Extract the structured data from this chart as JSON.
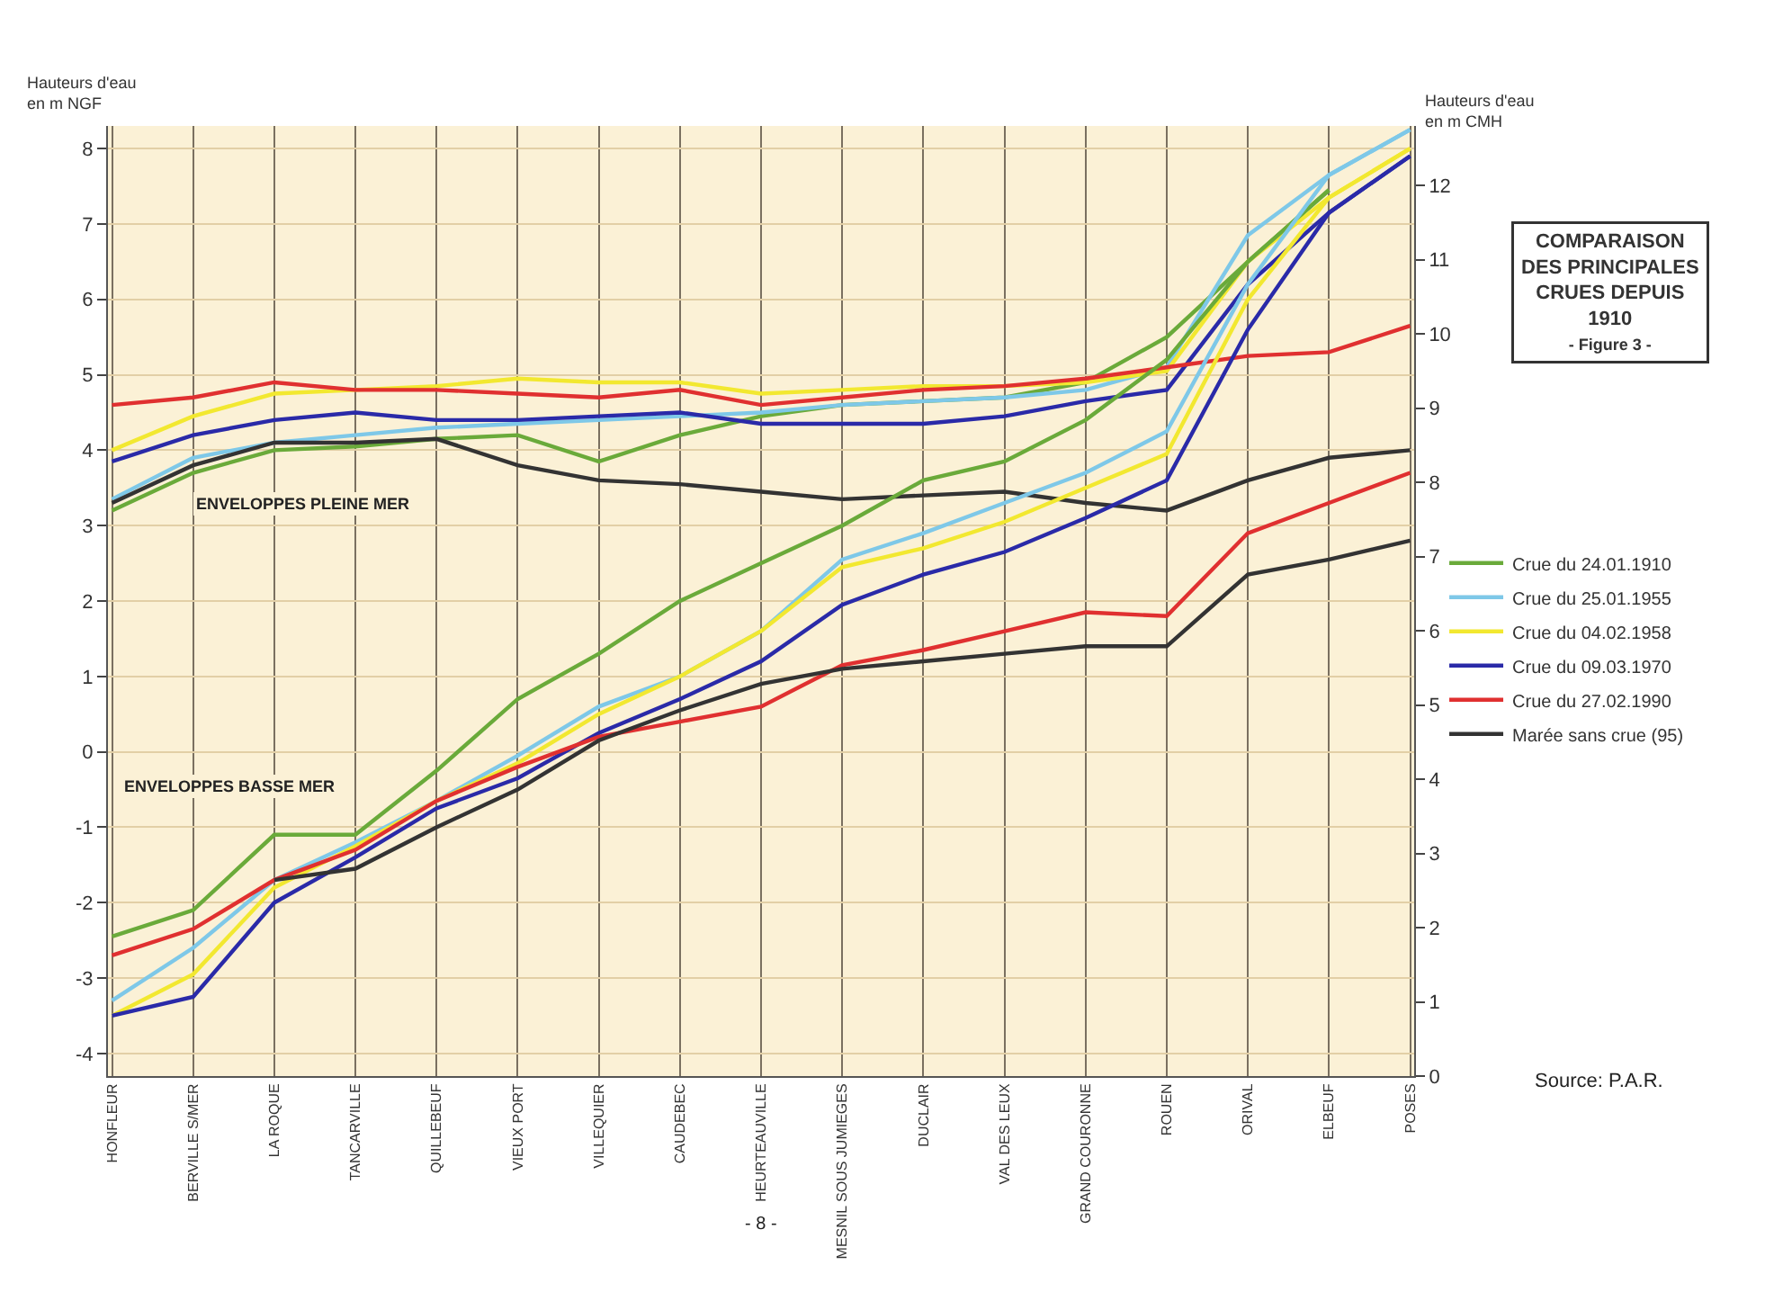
{
  "chart_data": {
    "type": "line",
    "title": "COMPARAISON\nDES PRINCIPALES\nCRUES DEPUIS\n1910",
    "subtitle": "- Figure 3 -",
    "ylabel": "Hauteurs d'eau\nen m NGF",
    "y2label": "Hauteurs d'eau\nen m CMH",
    "categories": [
      "HONFLEUR",
      "BERVILLE S/MER",
      "LA ROQUE",
      "TANCARVILLE",
      "QUILLEBEUF",
      "VIEUX PORT",
      "VILLEQUIER",
      "CAUDEBEC",
      "HEURTEAUVILLE",
      "MESNIL SOUS JUMIEGES",
      "DUCLAIR",
      "VAL DES LEUX",
      "GRAND COURONNE",
      "ROUEN",
      "ORIVAL",
      "ELBEUF",
      "POSES"
    ],
    "ylim": [
      -4.3,
      8.3
    ],
    "yticks": [
      -4,
      -3,
      -2,
      -1,
      0,
      1,
      2,
      3,
      4,
      5,
      6,
      7,
      8
    ],
    "y2lim": [
      0,
      12.8
    ],
    "y2ticks": [
      0,
      1,
      2,
      3,
      4,
      5,
      6,
      7,
      8,
      9,
      10,
      11,
      12
    ],
    "grid": true,
    "legend": "right",
    "marker": "none",
    "line_style": "solid",
    "series": [
      {
        "name": "Crue du 24.01.1910",
        "color": "#6aaa3a",
        "values": [
          3.2,
          3.7,
          4.0,
          4.05,
          4.15,
          4.2,
          3.85,
          4.2,
          4.45,
          4.6,
          4.65,
          4.7,
          4.9,
          5.5,
          6.5,
          7.45,
          null
        ]
      },
      {
        "name": "Crue du 25.01.1955",
        "color": "#7ec8e8",
        "values": [
          3.35,
          3.9,
          4.1,
          4.2,
          4.3,
          4.35,
          4.4,
          4.45,
          4.5,
          4.6,
          4.65,
          4.7,
          4.8,
          5.1,
          6.85,
          7.65,
          8.25
        ]
      },
      {
        "name": "Crue du 04.02.1958",
        "color": "#f2e830",
        "values": [
          4.0,
          4.45,
          4.75,
          4.8,
          4.85,
          4.95,
          4.9,
          4.9,
          4.75,
          4.8,
          4.85,
          4.85,
          4.9,
          5.05,
          6.5,
          7.35,
          8.0
        ]
      },
      {
        "name": "Crue du 09.03.1970",
        "color": "#2a2aa8",
        "values": [
          3.85,
          4.2,
          4.4,
          4.5,
          4.4,
          4.4,
          4.45,
          4.5,
          4.35,
          4.35,
          4.35,
          4.45,
          4.65,
          4.8,
          6.2,
          7.15,
          7.9
        ]
      },
      {
        "name": "Crue du 27.02.1990",
        "color": "#e03030",
        "values": [
          4.6,
          4.7,
          4.9,
          4.8,
          4.8,
          4.75,
          4.7,
          4.8,
          4.6,
          4.7,
          4.8,
          4.85,
          4.95,
          5.1,
          5.25,
          5.3,
          5.65
        ]
      },
      {
        "name": "Marée sans crue (95)",
        "color": "#333333",
        "values": [
          3.3,
          3.8,
          4.1,
          4.1,
          4.15,
          3.8,
          3.6,
          3.55,
          3.45,
          3.35,
          3.4,
          3.45,
          3.3,
          3.2,
          3.6,
          3.9,
          4.0
        ]
      },
      {
        "color": "#6aaa3a",
        "values": [
          -2.45,
          -2.1,
          -1.1,
          -1.1,
          -0.25,
          0.7,
          1.3,
          2.0,
          2.5,
          3.0,
          3.6,
          3.85,
          4.4,
          5.2,
          6.5,
          7.45,
          null
        ]
      },
      {
        "color": "#7ec8e8",
        "values": [
          -3.3,
          -2.6,
          -1.7,
          -1.2,
          -0.65,
          -0.05,
          0.6,
          1.0,
          1.6,
          2.55,
          2.9,
          3.3,
          3.7,
          4.25,
          6.2,
          7.65,
          8.25
        ]
      },
      {
        "color": "#f2e830",
        "values": [
          -3.5,
          -2.95,
          -1.8,
          -1.25,
          -0.65,
          -0.15,
          0.5,
          1.0,
          1.6,
          2.45,
          2.7,
          3.05,
          3.5,
          3.95,
          6.0,
          7.35,
          8.0
        ]
      },
      {
        "color": "#2a2aa8",
        "values": [
          -3.5,
          -3.25,
          -2.0,
          -1.4,
          -0.75,
          -0.35,
          0.25,
          0.7,
          1.2,
          1.95,
          2.35,
          2.65,
          3.1,
          3.6,
          5.6,
          7.15,
          7.9
        ]
      },
      {
        "color": "#e03030",
        "values": [
          -2.7,
          -2.35,
          -1.7,
          -1.3,
          -0.65,
          -0.2,
          0.2,
          0.4,
          0.6,
          1.15,
          1.35,
          1.6,
          1.85,
          1.8,
          2.9,
          3.3,
          3.7
        ]
      },
      {
        "color": "#333333",
        "values": [
          null,
          null,
          -1.7,
          -1.55,
          -1.0,
          -0.5,
          0.15,
          0.55,
          0.9,
          1.1,
          1.2,
          1.3,
          1.4,
          1.4,
          2.35,
          2.55,
          2.8
        ]
      }
    ],
    "annotations": [
      "ENVELOPPES PLEINE MER",
      "ENVELOPPES BASSE MER",
      "Source: P.A.R.",
      "- 8 -"
    ]
  }
}
